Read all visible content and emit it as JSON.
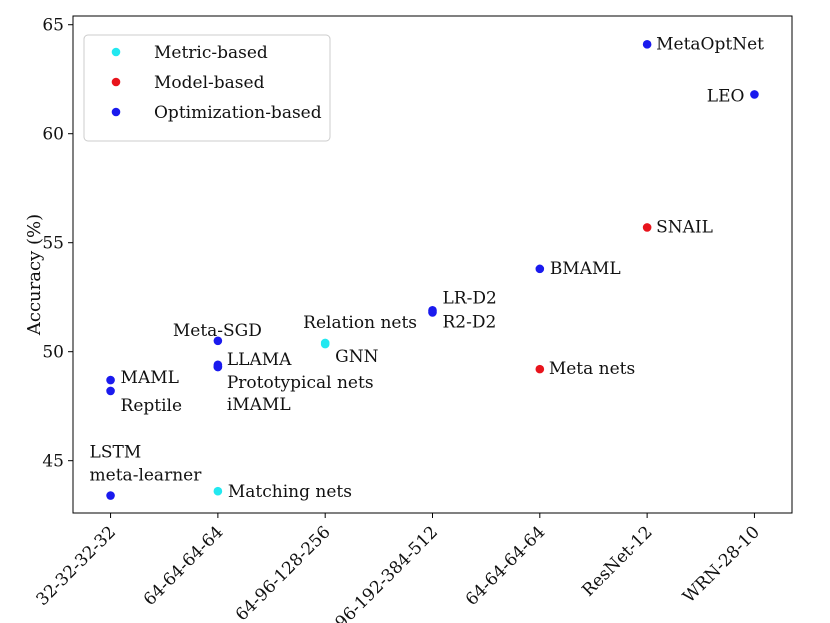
{
  "chart_data": {
    "type": "scatter",
    "title": "",
    "xlabel": "",
    "ylabel": "Accuracy (%)",
    "grid": false,
    "legend_position": "top-left",
    "categories": [
      "32-32-32-32",
      "64-64-64-64",
      "64-96-128-256",
      "96-192-384-512",
      "64-64-64-64",
      "ResNet-12",
      "WRN-28-10"
    ],
    "xlim": [
      -0.35,
      6.35
    ],
    "ylim": [
      42.6,
      65.4
    ],
    "yticks": [
      45,
      50,
      55,
      60,
      65
    ],
    "colors": {
      "Metric-based": "#22e8f0",
      "Model-based": "#e8141c",
      "Optimization-based": "#1a1aee"
    },
    "series": [
      {
        "name": "Metric-based",
        "points": [
          {
            "label": "Relation nets",
            "x": 2,
            "y": 50.4
          },
          {
            "label": "GNN",
            "x": 2,
            "y": 50.35
          },
          {
            "label": "Matching nets",
            "x": 1,
            "y": 43.6
          }
        ]
      },
      {
        "name": "Model-based",
        "points": [
          {
            "label": "SNAIL",
            "x": 5,
            "y": 55.7
          },
          {
            "label": "Meta nets",
            "x": 4,
            "y": 49.2
          }
        ]
      },
      {
        "name": "Optimization-based",
        "points": [
          {
            "label": "MetaOptNet",
            "x": 5,
            "y": 64.1
          },
          {
            "label": "LEO",
            "x": 6,
            "y": 61.8
          },
          {
            "label": "BMAML",
            "x": 4,
            "y": 53.8
          },
          {
            "label": "LR-D2",
            "x": 3,
            "y": 51.9
          },
          {
            "label": "R2-D2",
            "x": 3,
            "y": 51.8
          },
          {
            "label": "Meta-SGD",
            "x": 1,
            "y": 50.5
          },
          {
            "label": "LLAMA",
            "x": 1,
            "y": 49.4
          },
          {
            "label": "Prototypical nets",
            "x": 1,
            "y": 49.3
          },
          {
            "label": "iMAML",
            "x": 1,
            "y": 49.3
          },
          {
            "label": "MAML",
            "x": 0,
            "y": 48.7
          },
          {
            "label": "Reptile",
            "x": 0,
            "y": 48.2
          },
          {
            "label": "LSTM meta-learner",
            "x": 0,
            "y": 43.4
          }
        ]
      }
    ]
  }
}
